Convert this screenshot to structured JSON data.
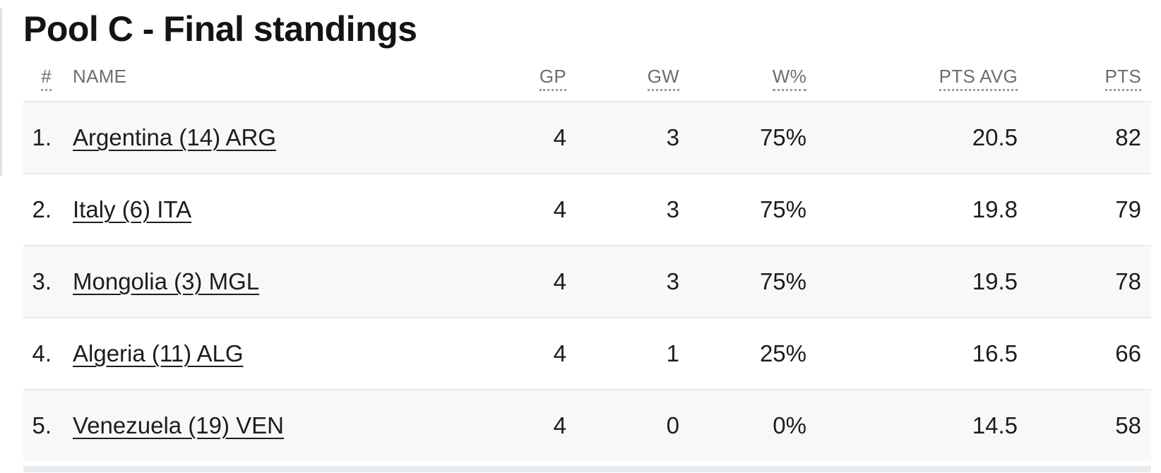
{
  "title": "Pool C - Final standings",
  "table": {
    "columns": [
      {
        "key": "rank",
        "label": "#"
      },
      {
        "key": "name",
        "label": "NAME"
      },
      {
        "key": "gp",
        "label": "GP"
      },
      {
        "key": "gw",
        "label": "GW"
      },
      {
        "key": "wpct",
        "label": "W%"
      },
      {
        "key": "pts_avg",
        "label": "PTS AVG"
      },
      {
        "key": "pts",
        "label": "PTS"
      }
    ],
    "rows": [
      {
        "rank": "1.",
        "name": "Argentina (14) ARG",
        "gp": "4",
        "gw": "3",
        "wpct": "75%",
        "pts_avg": "20.5",
        "pts": "82"
      },
      {
        "rank": "2.",
        "name": "Italy (6) ITA",
        "gp": "4",
        "gw": "3",
        "wpct": "75%",
        "pts_avg": "19.8",
        "pts": "79"
      },
      {
        "rank": "3.",
        "name": "Mongolia (3) MGL",
        "gp": "4",
        "gw": "3",
        "wpct": "75%",
        "pts_avg": "19.5",
        "pts": "78"
      },
      {
        "rank": "4.",
        "name": "Algeria (11) ALG",
        "gp": "4",
        "gw": "1",
        "wpct": "25%",
        "pts_avg": "16.5",
        "pts": "66"
      },
      {
        "rank": "5.",
        "name": "Venezuela (19) VEN",
        "gp": "4",
        "gw": "0",
        "wpct": "0%",
        "pts_avg": "14.5",
        "pts": "58"
      }
    ]
  },
  "colors": {
    "title_text": "#121416",
    "header_text": "#696e73",
    "body_text": "#1b1d1f",
    "row_stripe": "#f7f8f9",
    "row_border": "#e8ebee",
    "dotted_underline": "#989da3"
  }
}
